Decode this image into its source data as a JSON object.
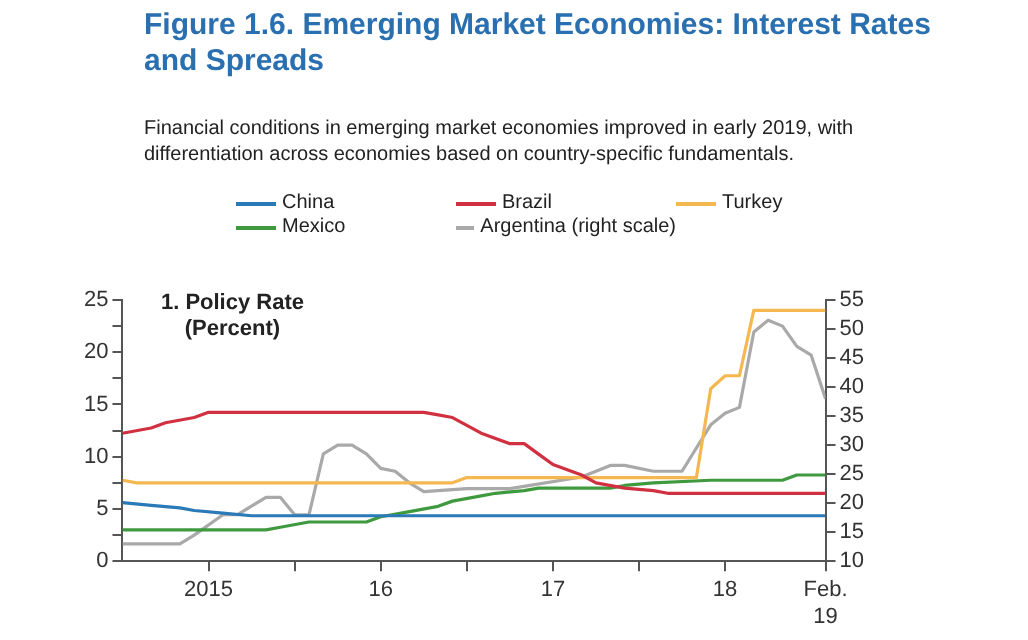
{
  "chart_data": {
    "type": "line",
    "title": "Figure 1.6.  Emerging Market Economies: Interest Rates and Spreads",
    "subtitle": "Financial conditions in emerging market economies improved in early 2019, with differentiation across economies based on country-specific fundamentals.",
    "annotations": [
      "1. Policy Rate"
    ],
    "ylabel": "(Percent)",
    "xlim": [
      "2015-01",
      "2019-02"
    ],
    "xticks": [
      {
        "value": "2015-07",
        "label": "2015"
      },
      {
        "value": "2016-01",
        "label": null
      },
      {
        "value": "2016-07",
        "label": "16"
      },
      {
        "value": "2017-01",
        "label": null
      },
      {
        "value": "2017-07",
        "label": "17"
      },
      {
        "value": "2018-01",
        "label": null
      },
      {
        "value": "2018-07",
        "label": "18"
      },
      {
        "value": "2019-02",
        "label": "Feb.\n19"
      }
    ],
    "ylim": [
      0,
      25
    ],
    "yticks": [
      0,
      {
        "value": 2.5,
        "label": null
      },
      5,
      {
        "value": 7.5,
        "label": null
      },
      10,
      {
        "value": 12.5,
        "label": null
      },
      15,
      {
        "value": 17.5,
        "label": null
      },
      20,
      {
        "value": 22.5,
        "label": null
      },
      25
    ],
    "y2lim": [
      10,
      55
    ],
    "y2ticks": [
      10,
      15,
      20,
      25,
      30,
      35,
      40,
      45,
      50,
      55
    ],
    "grid": false,
    "legend": "top",
    "marker": "none",
    "line_style": "solid",
    "series": [
      {
        "name": "China",
        "color": "#2a7ab8",
        "x": [
          "2015-01",
          "2015-03",
          "2015-05",
          "2015-06",
          "2015-08",
          "2015-10",
          "2019-02"
        ],
        "values": [
          5.6,
          5.35,
          5.1,
          4.85,
          4.6,
          4.35,
          4.35
        ]
      },
      {
        "name": "Brazil",
        "color": "#d03040",
        "x": [
          "2015-01",
          "2015-03",
          "2015-04",
          "2015-06",
          "2015-07",
          "2016-10",
          "2016-11",
          "2016-12",
          "2017-01",
          "2017-02",
          "2017-04",
          "2017-05",
          "2017-06",
          "2017-07",
          "2017-09",
          "2017-10",
          "2017-12",
          "2018-02",
          "2018-03",
          "2019-02"
        ],
        "values": [
          12.25,
          12.75,
          13.25,
          13.75,
          14.25,
          14.25,
          14.0,
          13.75,
          13.0,
          12.25,
          11.25,
          11.25,
          10.25,
          9.25,
          8.25,
          7.5,
          7.0,
          6.75,
          6.5,
          6.5
        ]
      },
      {
        "name": "Turkey",
        "color": "#f5b851",
        "x": [
          "2015-01",
          "2015-02",
          "2016-12",
          "2017-01",
          "2018-05",
          "2018-06",
          "2018-07",
          "2018-08",
          "2018-09",
          "2019-02"
        ],
        "values": [
          7.75,
          7.5,
          7.5,
          8.0,
          8.0,
          16.5,
          17.75,
          17.75,
          24,
          24
        ]
      },
      {
        "name": "Mexico",
        "color": "#3f9a3f",
        "x": [
          "2015-01",
          "2015-11",
          "2015-12",
          "2016-02",
          "2016-06",
          "2016-07",
          "2016-09",
          "2016-11",
          "2016-12",
          "2017-02",
          "2017-03",
          "2017-05",
          "2017-06",
          "2017-11",
          "2017-12",
          "2018-02",
          "2018-06",
          "2018-11",
          "2018-12",
          "2019-02"
        ],
        "values": [
          3.0,
          3.0,
          3.25,
          3.75,
          3.75,
          4.25,
          4.75,
          5.25,
          5.75,
          6.25,
          6.5,
          6.75,
          7.0,
          7.0,
          7.25,
          7.5,
          7.75,
          7.75,
          8.25,
          8.25
        ]
      },
      {
        "name": "Argentina (right scale)",
        "color": "#a9a9a9",
        "axis": "y2",
        "x": [
          "2015-01",
          "2015-05",
          "2015-06",
          "2015-08",
          "2015-09",
          "2015-11",
          "2015-12",
          "2016-01",
          "2016-02",
          "2016-03",
          "2016-04",
          "2016-05",
          "2016-06",
          "2016-07",
          "2016-08",
          "2016-09",
          "2016-10",
          "2017-01",
          "2017-04",
          "2017-09",
          "2017-11",
          "2017-12",
          "2018-02",
          "2018-04",
          "2018-05",
          "2018-06",
          "2018-07",
          "2018-08",
          "2018-09",
          "2018-10",
          "2018-11",
          "2018-12",
          "2019-01",
          "2019-02"
        ],
        "values": [
          13,
          13,
          14.5,
          18,
          18,
          21,
          21,
          18,
          18,
          28.5,
          30,
          30,
          28.5,
          26,
          25.5,
          23.5,
          22,
          22.5,
          22.5,
          24.5,
          26.5,
          26.5,
          25.5,
          25.5,
          29.5,
          33.5,
          35.5,
          36.5,
          49.5,
          51.5,
          50.5,
          47,
          45.5,
          38
        ]
      }
    ]
  }
}
